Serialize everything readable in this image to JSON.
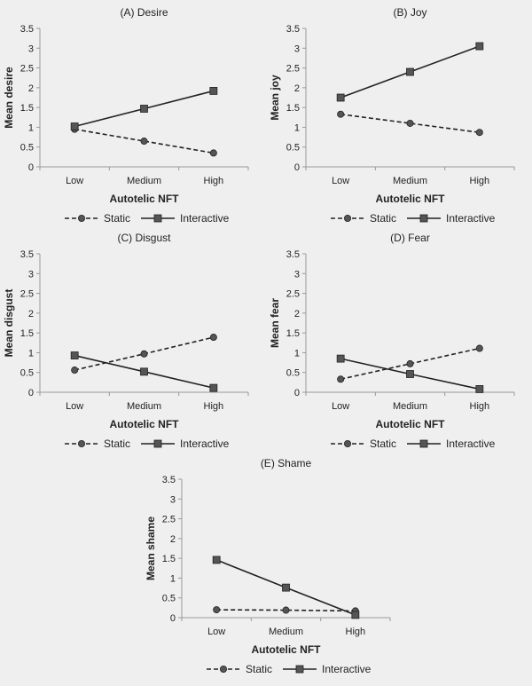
{
  "chart_data": [
    {
      "type": "line",
      "title": "(A) Desire",
      "xlabel": "Autotelic NFT",
      "ylabel": "Mean desire",
      "categories": [
        "Low",
        "Medium",
        "High"
      ],
      "ylim": [
        0,
        3.5
      ],
      "yticks": [
        "0",
        "0.5",
        "1",
        "1.5",
        "2",
        "2.5",
        "3",
        "3.5"
      ],
      "series": [
        {
          "name": "Static",
          "values": [
            0.95,
            0.65,
            0.35
          ]
        },
        {
          "name": "Interactive",
          "values": [
            1.02,
            1.47,
            1.92
          ]
        }
      ]
    },
    {
      "type": "line",
      "title": "(B) Joy",
      "xlabel": "Autotelic NFT",
      "ylabel": "Mean joy",
      "categories": [
        "Low",
        "Medium",
        "High"
      ],
      "ylim": [
        0,
        3.5
      ],
      "yticks": [
        "0",
        "0.5",
        "1",
        "1.5",
        "2",
        "2.5",
        "3",
        "3.5"
      ],
      "series": [
        {
          "name": "Static",
          "values": [
            1.33,
            1.1,
            0.87
          ]
        },
        {
          "name": "Interactive",
          "values": [
            1.75,
            2.4,
            3.05
          ]
        }
      ]
    },
    {
      "type": "line",
      "title": "(C) Disgust",
      "xlabel": "Autotelic NFT",
      "ylabel": "Mean disgust",
      "categories": [
        "Low",
        "Medium",
        "High"
      ],
      "ylim": [
        0,
        3.5
      ],
      "yticks": [
        "0",
        "0.5",
        "1",
        "1.5",
        "2",
        "2.5",
        "3",
        "3.5"
      ],
      "series": [
        {
          "name": "Static",
          "values": [
            0.56,
            0.97,
            1.39
          ]
        },
        {
          "name": "Interactive",
          "values": [
            0.93,
            0.52,
            0.11
          ]
        }
      ]
    },
    {
      "type": "line",
      "title": "(D) Fear",
      "xlabel": "Autotelic NFT",
      "ylabel": "Mean fear",
      "categories": [
        "Low",
        "Medium",
        "High"
      ],
      "ylim": [
        0,
        3.5
      ],
      "yticks": [
        "0",
        "0.5",
        "1",
        "1.5",
        "2",
        "2.5",
        "3",
        "3.5"
      ],
      "series": [
        {
          "name": "Static",
          "values": [
            0.33,
            0.72,
            1.11
          ]
        },
        {
          "name": "Interactive",
          "values": [
            0.85,
            0.46,
            0.08
          ]
        }
      ]
    },
    {
      "type": "line",
      "title": "(E) Shame",
      "xlabel": "Autotelic NFT",
      "ylabel": "Mean shame",
      "categories": [
        "Low",
        "Medium",
        "High"
      ],
      "ylim": [
        0,
        3.5
      ],
      "yticks": [
        "0",
        "0.5",
        "1",
        "1.5",
        "2",
        "2.5",
        "3",
        "3.5"
      ],
      "series": [
        {
          "name": "Static",
          "values": [
            0.2,
            0.19,
            0.17
          ]
        },
        {
          "name": "Interactive",
          "values": [
            1.46,
            0.76,
            0.07
          ]
        }
      ]
    }
  ],
  "legend": {
    "static_label": "Static",
    "interactive_label": "Interactive"
  },
  "colors": {
    "line": "#222222",
    "marker_fill": "#555555",
    "axis": "#999999",
    "background": "#efefef"
  }
}
